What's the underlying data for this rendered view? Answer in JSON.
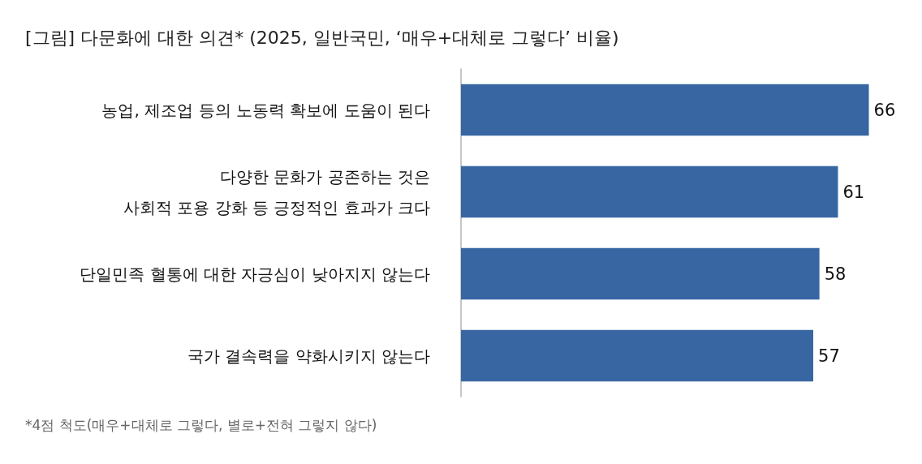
{
  "chart_data": {
    "type": "bar",
    "orientation": "horizontal",
    "title": "[그림] 다문화에 대한 의견* (2025, 일반국민, ‘매우+대체로 그렇다’ 비율)",
    "categories": [
      "농업, 제조업 등의 노동력 확보에 도움이 된다",
      "다양한 문화가 공존하는 것은\n사회적 포용 강화 등 긍정적인 효과가 크다",
      "단일민족 혈통에 대한 자긍심이 낮아지지 않는다",
      "국가 결속력을 약화시키지 않는다"
    ],
    "values": [
      66,
      61,
      58,
      57
    ],
    "color": "#3866a2",
    "data_labels": true,
    "annotations": [
      "*4점 척도(매우+대체로 그렇다, 별로+전혀 그렇지 않다)"
    ]
  }
}
